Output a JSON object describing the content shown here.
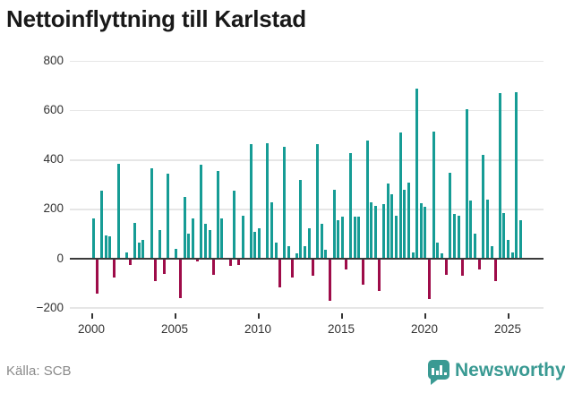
{
  "title": "Nettoinflyttning till Karlstad",
  "source": {
    "label": "Källa: SCB"
  },
  "branding": {
    "name": "Newsworthy",
    "icon": "bar-chart-speech-bubble-badge"
  },
  "colors": {
    "bar_positive": "#169c95",
    "bar_negative": "#9e0c49",
    "gridline": "#e6e6e6",
    "zero_line": "#3a3a3a",
    "axis_text": "#333333",
    "title_text": "#191919",
    "source_text": "#8a8a8a",
    "brand_teal": "#3a9a93"
  },
  "chart_data": {
    "type": "bar",
    "title": "Nettoinflyttning till Karlstad",
    "xlabel": "",
    "ylabel": "",
    "frequency": "quarterly",
    "x_tick_labels": [
      "2000",
      "2005",
      "2010",
      "2015",
      "2020",
      "2025"
    ],
    "y_ticks": [
      800,
      600,
      400,
      200,
      0,
      -200
    ],
    "y_tick_labels": [
      "800",
      "600",
      "400",
      "200",
      "0",
      "−200"
    ],
    "ylim": [
      -230,
      820
    ],
    "grid": "horizontal",
    "legend": "none",
    "years": [
      {
        "year": 2000,
        "quarters": [
          165,
          -140,
          275,
          95
        ]
      },
      {
        "year": 2001,
        "quarters": [
          90,
          -75,
          385,
          0
        ]
      },
      {
        "year": 2002,
        "quarters": [
          25,
          -25,
          145,
          65
        ]
      },
      {
        "year": 2003,
        "quarters": [
          75,
          0,
          365,
          -90
        ]
      },
      {
        "year": 2004,
        "quarters": [
          115,
          -60,
          345,
          0
        ]
      },
      {
        "year": 2005,
        "quarters": [
          40,
          -160,
          250,
          100
        ]
      },
      {
        "year": 2006,
        "quarters": [
          165,
          -10,
          380,
          140
        ]
      },
      {
        "year": 2007,
        "quarters": [
          115,
          -65,
          355,
          165
        ]
      },
      {
        "year": 2008,
        "quarters": [
          0,
          -30,
          275,
          -25
        ]
      },
      {
        "year": 2009,
        "quarters": [
          175,
          0,
          465,
          110
        ]
      },
      {
        "year": 2010,
        "quarters": [
          125,
          0,
          470,
          230
        ]
      },
      {
        "year": 2011,
        "quarters": [
          65,
          -115,
          455,
          50
        ]
      },
      {
        "year": 2012,
        "quarters": [
          -75,
          20,
          320,
          50
        ]
      },
      {
        "year": 2013,
        "quarters": [
          125,
          -70,
          465,
          140
        ]
      },
      {
        "year": 2014,
        "quarters": [
          35,
          -170,
          280,
          155
        ]
      },
      {
        "year": 2015,
        "quarters": [
          170,
          -45,
          430,
          170
        ]
      },
      {
        "year": 2016,
        "quarters": [
          170,
          -105,
          480,
          230
        ]
      },
      {
        "year": 2017,
        "quarters": [
          215,
          -130,
          220,
          305
        ]
      },
      {
        "year": 2018,
        "quarters": [
          260,
          175,
          510,
          280
        ]
      },
      {
        "year": 2019,
        "quarters": [
          310,
          25,
          690,
          225
        ]
      },
      {
        "year": 2020,
        "quarters": [
          210,
          -165,
          515,
          65
        ]
      },
      {
        "year": 2021,
        "quarters": [
          20,
          -65,
          350,
          180
        ]
      },
      {
        "year": 2022,
        "quarters": [
          175,
          -70,
          605,
          235
        ]
      },
      {
        "year": 2023,
        "quarters": [
          100,
          -45,
          420,
          240
        ]
      },
      {
        "year": 2024,
        "quarters": [
          50,
          -90,
          670,
          185
        ]
      },
      {
        "year": 2025,
        "quarters": [
          75,
          25,
          675,
          155
        ]
      }
    ]
  }
}
